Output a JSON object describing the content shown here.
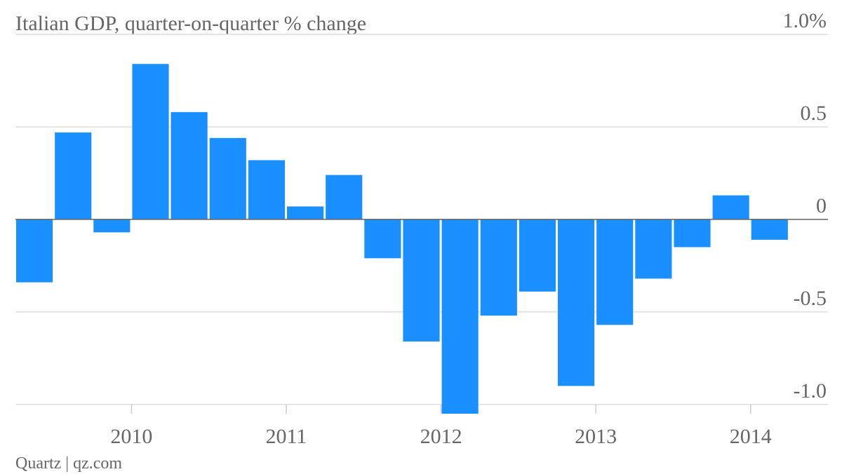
{
  "chart_data": {
    "type": "bar",
    "title": "Italian GDP, quarter-on-quarter % change",
    "source": "Quartz | qz.com",
    "x": [
      2009.25,
      2009.5,
      2009.75,
      2010,
      2010.25,
      2010.5,
      2010.75,
      2011,
      2011.25,
      2011.5,
      2011.75,
      2012,
      2012.25,
      2012.5,
      2012.75,
      2013,
      2013.25,
      2013.5,
      2013.75,
      2014
    ],
    "values": [
      -0.34,
      0.47,
      -0.07,
      0.84,
      0.58,
      0.44,
      0.32,
      0.07,
      0.24,
      -0.21,
      -0.66,
      -1.05,
      -0.52,
      -0.39,
      -0.9,
      -0.57,
      -0.32,
      -0.15,
      0.13,
      -0.11
    ],
    "color": "#1a8fff",
    "xlim": [
      2009.25,
      2014.5
    ],
    "xticks": [
      2010,
      2011,
      2012,
      2013,
      2014
    ],
    "ylim": [
      -1.05,
      1.0
    ],
    "yticks": [
      {
        "value": 1.0,
        "label": "1.0%"
      },
      0.5,
      0,
      -0.5,
      {
        "value": -1.0,
        "label": "-1.0"
      }
    ],
    "grid": true
  }
}
